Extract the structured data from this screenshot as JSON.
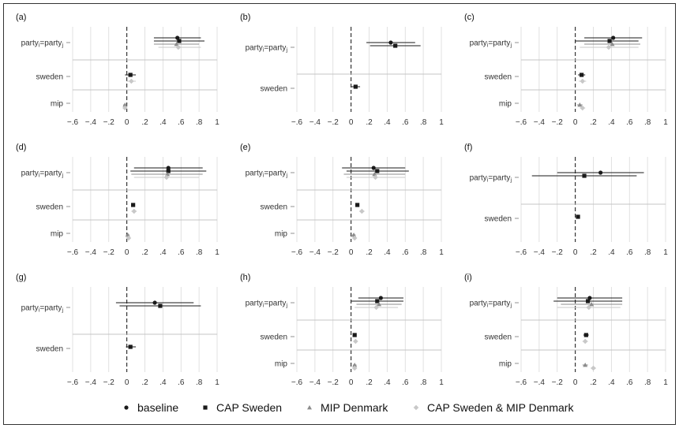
{
  "figure": {
    "x_ticks": [
      "−.6",
      "−.4",
      "−.2",
      "0",
      ".2",
      ".4",
      ".6",
      ".8",
      "1"
    ],
    "colors": {
      "baseline": "#1a1a1a",
      "cap_sweden": "#1a1a1a",
      "mip_denmark": "#8c8c8c",
      "cap_mip": "#c8c8c8",
      "grid": "#d9d9d9",
      "separator": "#c4c4c4"
    }
  },
  "legend": {
    "items": [
      {
        "key": "baseline",
        "label": "baseline",
        "marker": "circle"
      },
      {
        "key": "cap_sweden",
        "label": "CAP Sweden",
        "marker": "square"
      },
      {
        "key": "mip_denmark",
        "label": "MIP Denmark",
        "marker": "triangle"
      },
      {
        "key": "cap_mip",
        "label": "CAP Sweden & MIP Denmark",
        "marker": "diamond"
      }
    ]
  },
  "chart_data": [
    {
      "panel": "(a)",
      "type": "scatter",
      "x_range": [
        -0.6,
        1
      ],
      "ticks": [
        -0.6,
        -0.4,
        -0.2,
        0,
        0.2,
        0.4,
        0.6,
        0.8,
        1
      ],
      "rows": [
        "party_i=party_j",
        "sweden",
        "mip"
      ],
      "points": [
        {
          "series": "baseline",
          "row": 0,
          "x": 0.56,
          "ci": [
            0.3,
            0.82
          ]
        },
        {
          "series": "cap_sweden",
          "row": 0,
          "x": 0.58,
          "ci": [
            0.3,
            0.86
          ]
        },
        {
          "series": "mip_denmark",
          "row": 0,
          "x": 0.55,
          "ci": [
            0.3,
            0.8
          ]
        },
        {
          "series": "cap_mip",
          "row": 0,
          "x": 0.57,
          "ci": [
            0.35,
            0.82
          ]
        },
        {
          "series": "cap_sweden",
          "row": 1,
          "x": 0.04,
          "ci": [
            -0.02,
            0.1
          ]
        },
        {
          "series": "cap_mip",
          "row": 1,
          "x": 0.05,
          "ci": [
            0.0,
            0.1
          ]
        },
        {
          "series": "mip_denmark",
          "row": 2,
          "x": -0.02,
          "ci": [
            -0.04,
            0.0
          ]
        },
        {
          "series": "cap_mip",
          "row": 2,
          "x": -0.02,
          "ci": [
            -0.04,
            0.0
          ]
        }
      ]
    },
    {
      "panel": "(b)",
      "type": "scatter",
      "x_range": [
        -0.6,
        1
      ],
      "ticks": [
        -0.6,
        -0.4,
        -0.2,
        0,
        0.2,
        0.4,
        0.6,
        0.8,
        1
      ],
      "rows": [
        "party_i=party_j",
        "sweden"
      ],
      "points": [
        {
          "series": "baseline",
          "row": 0,
          "x": 0.44,
          "ci": [
            0.17,
            0.71
          ]
        },
        {
          "series": "cap_sweden",
          "row": 0,
          "x": 0.49,
          "ci": [
            0.21,
            0.77
          ]
        },
        {
          "series": "cap_sweden",
          "row": 1,
          "x": 0.05,
          "ci": [
            0.0,
            0.1
          ]
        }
      ]
    },
    {
      "panel": "(c)",
      "type": "scatter",
      "x_range": [
        -0.6,
        1
      ],
      "ticks": [
        -0.6,
        -0.4,
        -0.2,
        0,
        0.2,
        0.4,
        0.6,
        0.8,
        1
      ],
      "rows": [
        "party_i=party_j",
        "sweden",
        "mip"
      ],
      "points": [
        {
          "series": "baseline",
          "row": 0,
          "x": 0.42,
          "ci": [
            0.1,
            0.74
          ]
        },
        {
          "series": "cap_sweden",
          "row": 0,
          "x": 0.38,
          "ci": [
            0.0,
            0.7
          ]
        },
        {
          "series": "mip_denmark",
          "row": 0,
          "x": 0.41,
          "ci": [
            0.1,
            0.72
          ]
        },
        {
          "series": "cap_mip",
          "row": 0,
          "x": 0.37,
          "ci": [
            0.05,
            0.7
          ]
        },
        {
          "series": "cap_sweden",
          "row": 1,
          "x": 0.07,
          "ci": [
            0.03,
            0.11
          ]
        },
        {
          "series": "cap_mip",
          "row": 1,
          "x": 0.08,
          "ci": [
            0.04,
            0.12
          ]
        },
        {
          "series": "mip_denmark",
          "row": 2,
          "x": 0.05,
          "ci": [
            0.02,
            0.08
          ]
        },
        {
          "series": "cap_mip",
          "row": 2,
          "x": 0.08,
          "ci": [
            0.05,
            0.11
          ]
        }
      ]
    },
    {
      "panel": "(d)",
      "type": "scatter",
      "x_range": [
        -0.6,
        1
      ],
      "ticks": [
        -0.6,
        -0.4,
        -0.2,
        0,
        0.2,
        0.4,
        0.6,
        0.8,
        1
      ],
      "rows": [
        "party_i=party_j",
        "sweden",
        "mip"
      ],
      "points": [
        {
          "series": "baseline",
          "row": 0,
          "x": 0.46,
          "ci": [
            0.08,
            0.84
          ]
        },
        {
          "series": "cap_sweden",
          "row": 0,
          "x": 0.46,
          "ci": [
            0.04,
            0.88
          ]
        },
        {
          "series": "mip_denmark",
          "row": 0,
          "x": 0.45,
          "ci": [
            0.05,
            0.84
          ]
        },
        {
          "series": "cap_mip",
          "row": 0,
          "x": 0.44,
          "ci": [
            0.08,
            0.8
          ]
        },
        {
          "series": "cap_sweden",
          "row": 1,
          "x": 0.07,
          "ci": [
            0.05,
            0.09
          ]
        },
        {
          "series": "cap_mip",
          "row": 1,
          "x": 0.08,
          "ci": [
            0.05,
            0.11
          ]
        },
        {
          "series": "mip_denmark",
          "row": 2,
          "x": 0.01,
          "ci": [
            -0.01,
            0.03
          ]
        },
        {
          "series": "cap_mip",
          "row": 2,
          "x": 0.02,
          "ci": [
            0.0,
            0.04
          ]
        }
      ]
    },
    {
      "panel": "(e)",
      "type": "scatter",
      "x_range": [
        -0.6,
        1
      ],
      "ticks": [
        -0.6,
        -0.4,
        -0.2,
        0,
        0.2,
        0.4,
        0.6,
        0.8,
        1
      ],
      "rows": [
        "party_i=party_j",
        "sweden",
        "mip"
      ],
      "points": [
        {
          "series": "baseline",
          "row": 0,
          "x": 0.25,
          "ci": [
            -0.1,
            0.6
          ]
        },
        {
          "series": "cap_sweden",
          "row": 0,
          "x": 0.29,
          "ci": [
            -0.05,
            0.64
          ]
        },
        {
          "series": "mip_denmark",
          "row": 0,
          "x": 0.26,
          "ci": [
            -0.08,
            0.6
          ]
        },
        {
          "series": "cap_mip",
          "row": 0,
          "x": 0.27,
          "ci": [
            -0.05,
            0.6
          ]
        },
        {
          "series": "cap_sweden",
          "row": 1,
          "x": 0.07,
          "ci": [
            0.05,
            0.09
          ]
        },
        {
          "series": "cap_mip",
          "row": 1,
          "x": 0.12,
          "ci": [
            0.09,
            0.15
          ]
        },
        {
          "series": "mip_denmark",
          "row": 2,
          "x": 0.03,
          "ci": [
            0.01,
            0.05
          ]
        },
        {
          "series": "cap_mip",
          "row": 2,
          "x": 0.04,
          "ci": [
            0.02,
            0.06
          ]
        }
      ]
    },
    {
      "panel": "(f)",
      "type": "scatter",
      "x_range": [
        -0.6,
        1
      ],
      "ticks": [
        -0.6,
        -0.4,
        -0.2,
        0,
        0.2,
        0.4,
        0.6,
        0.8,
        1
      ],
      "rows": [
        "party_i=party_j",
        "sweden"
      ],
      "points": [
        {
          "series": "baseline",
          "row": 0,
          "x": 0.28,
          "ci": [
            -0.2,
            0.76
          ]
        },
        {
          "series": "cap_sweden",
          "row": 0,
          "x": 0.1,
          "ci": [
            -0.48,
            0.68
          ]
        },
        {
          "series": "cap_sweden",
          "row": 1,
          "x": 0.03,
          "ci": [
            0.01,
            0.05
          ]
        }
      ]
    },
    {
      "panel": "(g)",
      "type": "scatter",
      "x_range": [
        -0.6,
        1
      ],
      "ticks": [
        -0.6,
        -0.4,
        -0.2,
        0,
        0.2,
        0.4,
        0.6,
        0.8,
        1
      ],
      "rows": [
        "party_i=party_j",
        "sweden"
      ],
      "points": [
        {
          "series": "baseline",
          "row": 0,
          "x": 0.31,
          "ci": [
            -0.12,
            0.74
          ]
        },
        {
          "series": "cap_sweden",
          "row": 0,
          "x": 0.37,
          "ci": [
            -0.08,
            0.82
          ]
        },
        {
          "series": "cap_sweden",
          "row": 1,
          "x": 0.04,
          "ci": [
            -0.01,
            0.1
          ]
        }
      ]
    },
    {
      "panel": "(h)",
      "type": "scatter",
      "x_range": [
        -0.6,
        1
      ],
      "ticks": [
        -0.6,
        -0.4,
        -0.2,
        0,
        0.2,
        0.4,
        0.6,
        0.8,
        1
      ],
      "rows": [
        "party_i=party_j",
        "sweden",
        "mip"
      ],
      "points": [
        {
          "series": "baseline",
          "row": 0,
          "x": 0.33,
          "ci": [
            0.08,
            0.58
          ]
        },
        {
          "series": "cap_sweden",
          "row": 0,
          "x": 0.29,
          "ci": [
            0.0,
            0.58
          ]
        },
        {
          "series": "mip_denmark",
          "row": 0,
          "x": 0.31,
          "ci": [
            0.06,
            0.56
          ]
        },
        {
          "series": "cap_mip",
          "row": 0,
          "x": 0.28,
          "ci": [
            0.04,
            0.52
          ]
        },
        {
          "series": "cap_sweden",
          "row": 1,
          "x": 0.04,
          "ci": [
            0.02,
            0.06
          ]
        },
        {
          "series": "cap_mip",
          "row": 1,
          "x": 0.05,
          "ci": [
            0.03,
            0.07
          ]
        },
        {
          "series": "mip_denmark",
          "row": 2,
          "x": 0.04,
          "ci": [
            0.02,
            0.06
          ]
        },
        {
          "series": "cap_mip",
          "row": 2,
          "x": 0.04,
          "ci": [
            0.02,
            0.06
          ]
        }
      ]
    },
    {
      "panel": "(i)",
      "type": "scatter",
      "x_range": [
        -0.6,
        1
      ],
      "ticks": [
        -0.6,
        -0.4,
        -0.2,
        0,
        0.2,
        0.4,
        0.6,
        0.8,
        1
      ],
      "rows": [
        "party_i=party_j",
        "sweden",
        "mip"
      ],
      "points": [
        {
          "series": "baseline",
          "row": 0,
          "x": 0.16,
          "ci": [
            -0.2,
            0.52
          ]
        },
        {
          "series": "cap_sweden",
          "row": 0,
          "x": 0.14,
          "ci": [
            -0.24,
            0.52
          ]
        },
        {
          "series": "mip_denmark",
          "row": 0,
          "x": 0.18,
          "ci": [
            -0.16,
            0.52
          ]
        },
        {
          "series": "cap_mip",
          "row": 0,
          "x": 0.15,
          "ci": [
            -0.2,
            0.5
          ]
        },
        {
          "series": "cap_sweden",
          "row": 1,
          "x": 0.12,
          "ci": [
            0.09,
            0.15
          ]
        },
        {
          "series": "cap_mip",
          "row": 1,
          "x": 0.11,
          "ci": [
            0.08,
            0.14
          ]
        },
        {
          "series": "mip_denmark",
          "row": 2,
          "x": 0.11,
          "ci": [
            0.08,
            0.14
          ]
        },
        {
          "series": "cap_mip",
          "row": 2,
          "x": 0.2,
          "ci": [
            0.17,
            0.23
          ]
        }
      ]
    }
  ]
}
